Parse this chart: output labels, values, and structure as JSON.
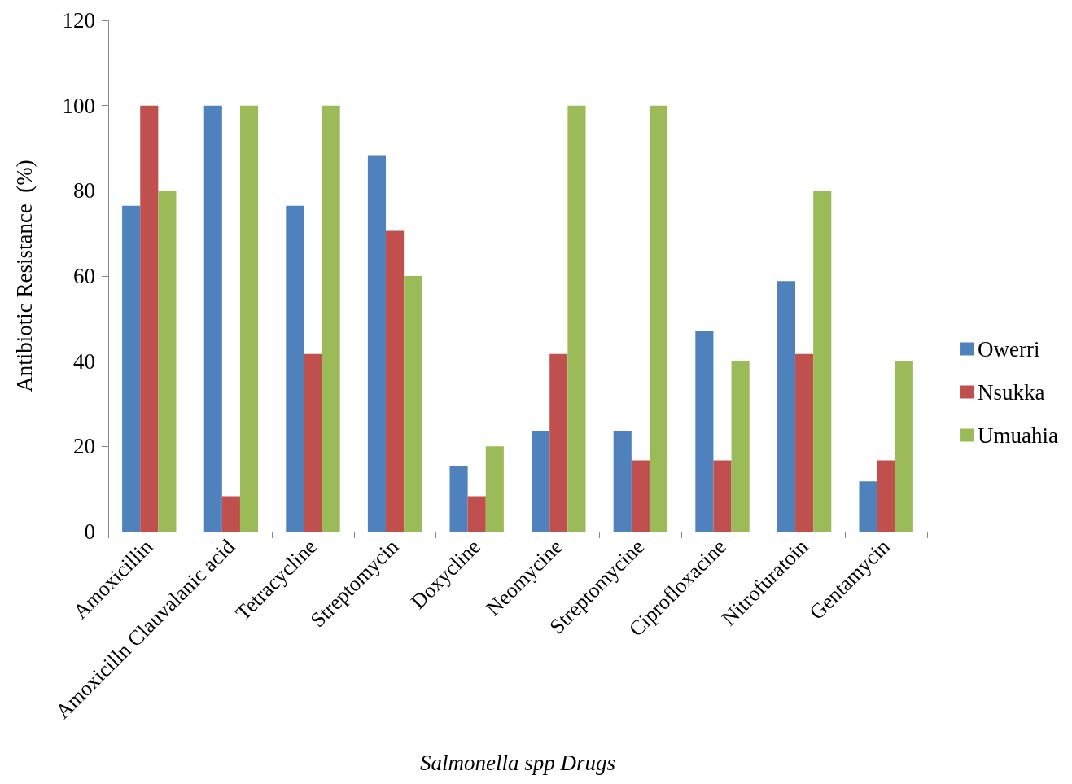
{
  "chart_data": {
    "type": "bar",
    "xlabel": "Salmonella spp Drugs",
    "ylabel": "Antibiotic Resistance  (%)",
    "categories": [
      "Amoxicillin",
      "Amoxicilln Clauvalanic acid",
      "Tetracycline",
      "Streptomycin",
      "Doxycline",
      "Neomycine",
      "Streptomycine",
      "Ciprofloxacine",
      "Nitrofuratoin",
      "Gentamycin"
    ],
    "series": [
      {
        "name": "Owerri",
        "color": "#4f81bd",
        "values": [
          76.5,
          100,
          76.5,
          88.2,
          15.3,
          23.5,
          23.5,
          47,
          58.8,
          11.8
        ]
      },
      {
        "name": "Nsukka",
        "color": "#c0504d",
        "values": [
          100,
          8.3,
          41.7,
          70.6,
          8.3,
          41.7,
          16.7,
          16.7,
          41.7,
          16.7
        ]
      },
      {
        "name": "Umuahia",
        "color": "#9bbb59",
        "values": [
          80,
          100,
          100,
          60,
          20,
          100,
          100,
          40,
          80,
          40
        ]
      }
    ],
    "ylim": [
      0,
      120
    ],
    "yticks": [
      0,
      20,
      40,
      60,
      80,
      100,
      120
    ],
    "grid": false,
    "legend": "right"
  }
}
